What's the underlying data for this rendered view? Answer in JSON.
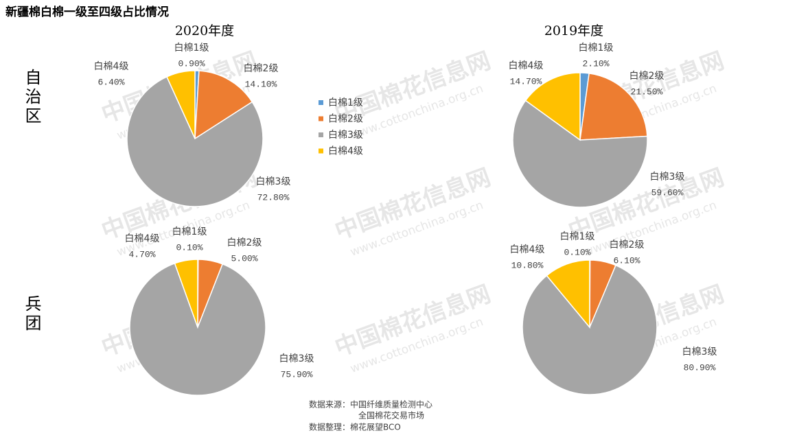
{
  "title": "新疆棉白棉一级至四级占比情况",
  "columns": [
    "2020年度",
    "2019年度"
  ],
  "row_labels": [
    "自治区",
    "兵团"
  ],
  "watermark": [
    "中国棉花信息网",
    "www.cottonchina.org.cn"
  ],
  "source": [
    "数据来源：中国纤维质量检测中心",
    "全国棉花交易市场",
    "数据整理：棉花展望BCO"
  ],
  "chart_data": [
    {
      "type": "pie",
      "categories": [
        "白棉1级",
        "白棉2级",
        "白棉3级",
        "白棉4级"
      ],
      "values": [
        0.9,
        14.1,
        72.8,
        6.4
      ],
      "value_labels": [
        "0.90%",
        "14.10%",
        "72.80%",
        "6.40%"
      ],
      "colors": [
        "#5b9bd5",
        "#ed7d31",
        "#a5a5a5",
        "#ffc000"
      ]
    },
    {
      "type": "pie",
      "categories": [
        "白棉1级",
        "白棉2级",
        "白棉3级",
        "白棉4级"
      ],
      "values": [
        2.1,
        21.5,
        59.6,
        14.7
      ],
      "value_labels": [
        "2.10%",
        "21.50%",
        "59.60%",
        "14.70%"
      ],
      "colors": [
        "#5b9bd5",
        "#ed7d31",
        "#a5a5a5",
        "#ffc000"
      ]
    },
    {
      "type": "pie",
      "categories": [
        "白棉1级",
        "白棉2级",
        "白棉3级",
        "白棉4级"
      ],
      "values": [
        0.1,
        5.0,
        75.9,
        4.7
      ],
      "value_labels": [
        "0.10%",
        "5.00%",
        "75.90%",
        "4.70%"
      ],
      "colors": [
        "#5b9bd5",
        "#ed7d31",
        "#a5a5a5",
        "#ffc000"
      ]
    },
    {
      "type": "pie",
      "categories": [
        "白棉1级",
        "白棉2级",
        "白棉3级",
        "白棉4级"
      ],
      "values": [
        0.1,
        6.1,
        80.9,
        10.8
      ],
      "value_labels": [
        "0.10%",
        "6.10%",
        "80.90%",
        "10.80%"
      ],
      "colors": [
        "#5b9bd5",
        "#ed7d31",
        "#a5a5a5",
        "#ffc000"
      ]
    }
  ]
}
